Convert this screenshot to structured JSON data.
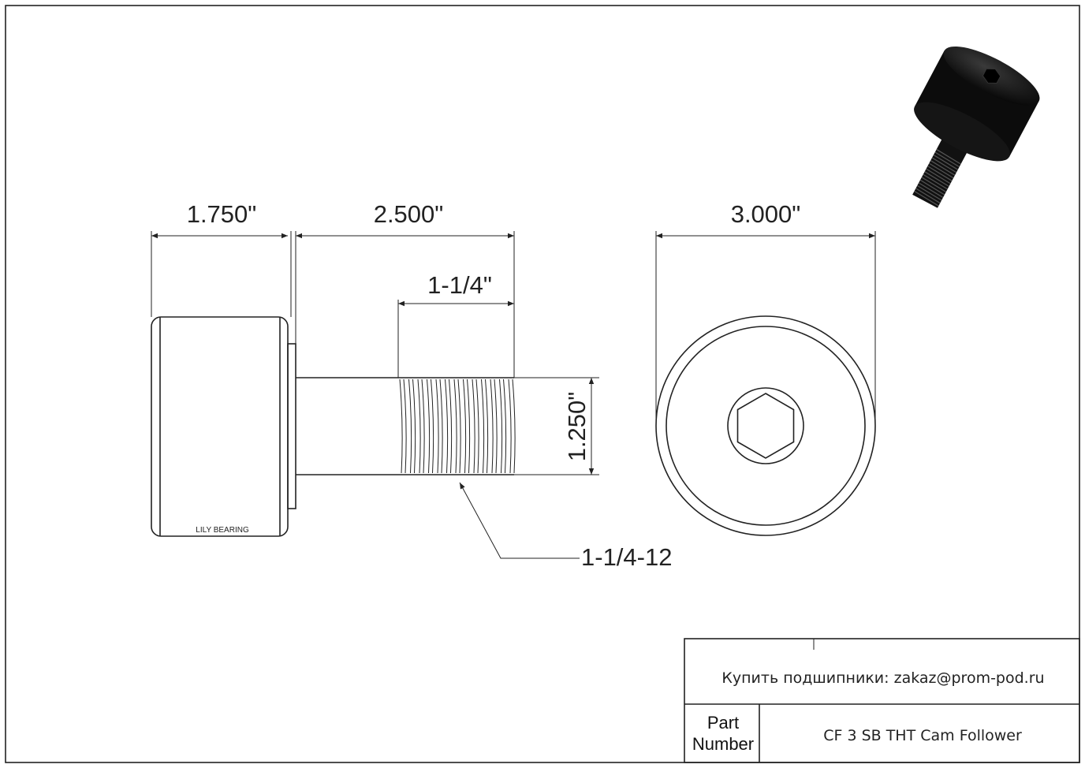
{
  "dimensions": {
    "roller_width": "1.750\"",
    "overall_length": "2.500\"",
    "thread_length": "1-1/4\"",
    "stud_diameter": "1.250\"",
    "roller_diameter": "3.000\"",
    "thread_spec": "1-1/4-12"
  },
  "brand_marking": "LILY BEARING",
  "title_block": {
    "buy_text": "Купить подшипники: zakaz@prom-pod.ru",
    "part_label_line1": "Part",
    "part_label_line2": "Number",
    "part_number": "CF 3 SB THT Cam Follower"
  }
}
